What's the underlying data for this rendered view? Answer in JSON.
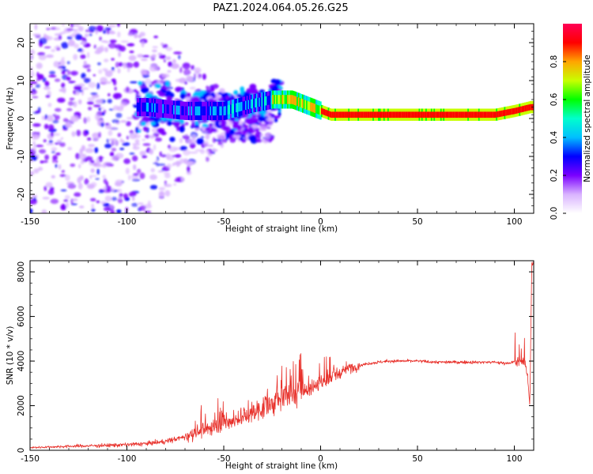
{
  "title": "PAZ1.2024.064.05.26.G25",
  "chart_data": [
    {
      "type": "heatmap",
      "xlabel": "Height of straight line (km)",
      "ylabel": "Frequency (Hz)",
      "xlim": [
        -150,
        110
      ],
      "ylim": [
        -25,
        25
      ],
      "xticks": [
        -150,
        -100,
        -50,
        0,
        50,
        100
      ],
      "yticks": [
        -20,
        -10,
        0,
        10,
        20
      ],
      "colorbar": {
        "label": "Normalized spectral amplitude",
        "range": [
          0.0,
          1.0
        ],
        "ticks": [
          0.0,
          0.2,
          0.4,
          0.6,
          0.8
        ],
        "tick_labels": [
          "0.0",
          "0.2",
          "0.4",
          "0.6",
          "0.8"
        ],
        "colors": [
          "#ffffff",
          "#d9b3ff",
          "#7a00ff",
          "#0000ff",
          "#00bfff",
          "#00ffcc",
          "#00ff00",
          "#c8ff00",
          "#ffa500",
          "#ff0000",
          "#ff0055"
        ]
      },
      "ridge_frequency": {
        "x": [
          -90,
          -70,
          -50,
          -35,
          -25,
          -15,
          -10,
          -5,
          0,
          5,
          10,
          20,
          50,
          80,
          90,
          100,
          108
        ],
        "y": [
          3,
          2,
          2,
          4,
          5,
          5,
          4,
          3,
          2,
          1,
          1,
          1,
          1,
          1,
          1,
          2,
          3
        ]
      }
    },
    {
      "type": "line",
      "xlabel": "Height of straight line (km)",
      "ylabel": "SNR (10 * v/v)",
      "xlim": [
        -150,
        110
      ],
      "ylim": [
        0,
        8500
      ],
      "xticks": [
        -150,
        -100,
        -50,
        0,
        50,
        100
      ],
      "yticks": [
        0,
        2000,
        4000,
        6000,
        8000
      ],
      "line_color": "#e8302a",
      "series": [
        {
          "x": [
            -150,
            -140,
            -130,
            -120,
            -110,
            -100,
            -90,
            -85,
            -80,
            -75,
            -70,
            -65,
            -60,
            -55,
            -50,
            -45,
            -40,
            -35,
            -30,
            -25,
            -20,
            -15,
            -10,
            -5,
            0,
            5,
            10,
            15,
            20,
            25,
            30,
            35,
            40,
            50,
            60,
            70,
            80,
            90,
            95,
            100,
            103,
            105,
            107,
            108,
            109
          ],
          "y": [
            120,
            150,
            180,
            200,
            220,
            250,
            300,
            350,
            400,
            500,
            600,
            800,
            900,
            1100,
            1200,
            1300,
            1500,
            1700,
            1900,
            2100,
            2300,
            2500,
            2700,
            2800,
            3000,
            3300,
            3500,
            3700,
            3800,
            3900,
            3950,
            4000,
            4000,
            4000,
            3950,
            3950,
            3950,
            3950,
            3900,
            3950,
            4000,
            4100,
            3200,
            2000,
            8400
          ]
        }
      ]
    }
  ]
}
